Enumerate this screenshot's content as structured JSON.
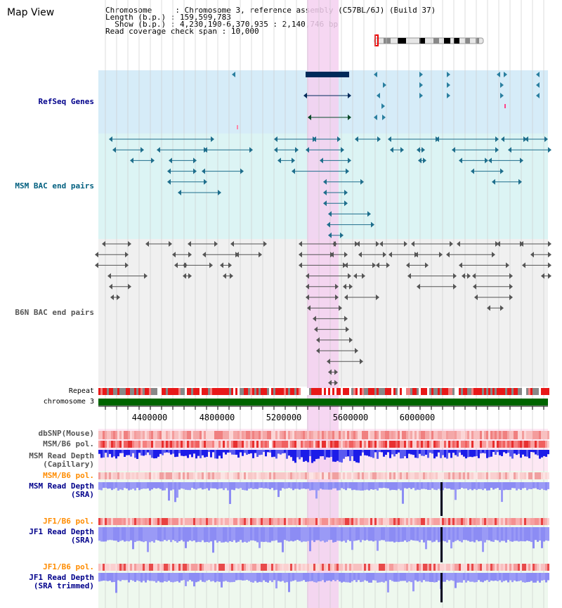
{
  "title": "Map View",
  "info": {
    "chromosome_key": "Chromosome",
    "chromosome_val": "Chromosome 3, reference assembly (C57BL/6J) (Build 37)",
    "length_key": "Length (b.p.)",
    "length_val": "159,599,783",
    "show_key": "Show (b.p.)",
    "show_val": "4,230,190-6,370,935 : 2,140,746 bp",
    "span_key": "Read coverage check span",
    "span_val": "10,000"
  },
  "tracks": {
    "refseq": "RefSeq Genes",
    "msm_bac": "MSM BAC end pairs",
    "b6n_bac": "B6N BAC end pairs",
    "repeat": "Repeat",
    "chromosome": "chromosome 3",
    "dbsnp": "dbSNP(Mouse)",
    "msm_b6_pol_1": "MSM/B6 pol.",
    "msm_depth_cap_1": "MSM Read Depth",
    "msm_depth_cap_2": "(Capillary)",
    "msm_b6_pol_2": "MSM/B6 pol.",
    "msm_depth_sra_1": "MSM Read Depth",
    "msm_depth_sra_2": "(SRA)",
    "jf1_b6_pol_1": "JF1/B6 pol.",
    "jf1_depth_sra_1": "JF1 Read Depth",
    "jf1_depth_sra_2": "(SRA)",
    "jf1_b6_pol_2": "JF1/B6 pol.",
    "jf1_depth_trim_1": "JF1 Read Depth",
    "jf1_depth_trim_2": "(SRA trimmed)"
  },
  "axis": {
    "ticks": [
      "4400000",
      "4800000",
      "5200000",
      "5600000",
      "6000000"
    ]
  },
  "colors": {
    "highlight": "#f5d0f0",
    "refseq_bg": "#d6ecf8",
    "msm_bg": "#dcf4f4",
    "b6n_bg": "#eeeeee",
    "gene": "#002a5a",
    "msm_pair": "#1e6e8c",
    "b6n_pair": "#555555",
    "chrom": "#006400",
    "depth_blue": "#1010e0",
    "depth_light": "#8c8cf4"
  }
}
